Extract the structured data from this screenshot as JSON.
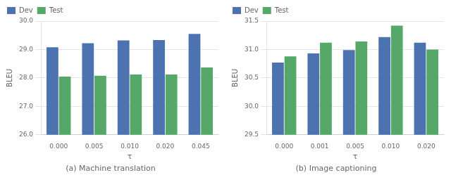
{
  "chart_data": [
    {
      "type": "bar",
      "title": "(a) Machine translation",
      "xlabel": "τ",
      "ylabel": "BLEU",
      "categories": [
        "0.000",
        "0.005",
        "0.010",
        "0.020",
        "0.045"
      ],
      "series": [
        {
          "name": "Dev",
          "color": "#4C72B0",
          "values": [
            29.08,
            29.22,
            29.32,
            29.33,
            29.55
          ]
        },
        {
          "name": "Test",
          "color": "#55A868",
          "values": [
            28.05,
            28.08,
            28.12,
            28.12,
            28.37
          ]
        }
      ],
      "ylim": [
        26.0,
        30.0
      ],
      "yticks": [
        {
          "value": 26.0,
          "label": "26.0"
        },
        {
          "value": 27.0,
          "label": "27.0"
        },
        {
          "value": 28.0,
          "label": "28.0"
        },
        {
          "value": 29.0,
          "label": "29.0"
        },
        {
          "value": 30.0,
          "label": "30.0"
        }
      ],
      "grid": true,
      "legend": "upper left"
    },
    {
      "type": "bar",
      "title": "(b) Image captioning",
      "xlabel": "τ",
      "ylabel": "BLEU",
      "categories": [
        "0.000",
        "0.001",
        "0.005",
        "0.010",
        "0.020"
      ],
      "series": [
        {
          "name": "Dev",
          "color": "#4C72B0",
          "values": [
            30.77,
            30.93,
            30.99,
            31.22,
            31.12
          ]
        },
        {
          "name": "Test",
          "color": "#55A868",
          "values": [
            30.88,
            31.12,
            31.14,
            31.42,
            31.0
          ]
        }
      ],
      "ylim": [
        29.5,
        31.5
      ],
      "yticks": [
        29.5,
        {
          "value": 30.0,
          "label": "30.0"
        },
        30.5,
        {
          "value": 31.0,
          "label": "31.0"
        },
        31.5
      ],
      "grid": true,
      "legend": "upper left"
    }
  ]
}
